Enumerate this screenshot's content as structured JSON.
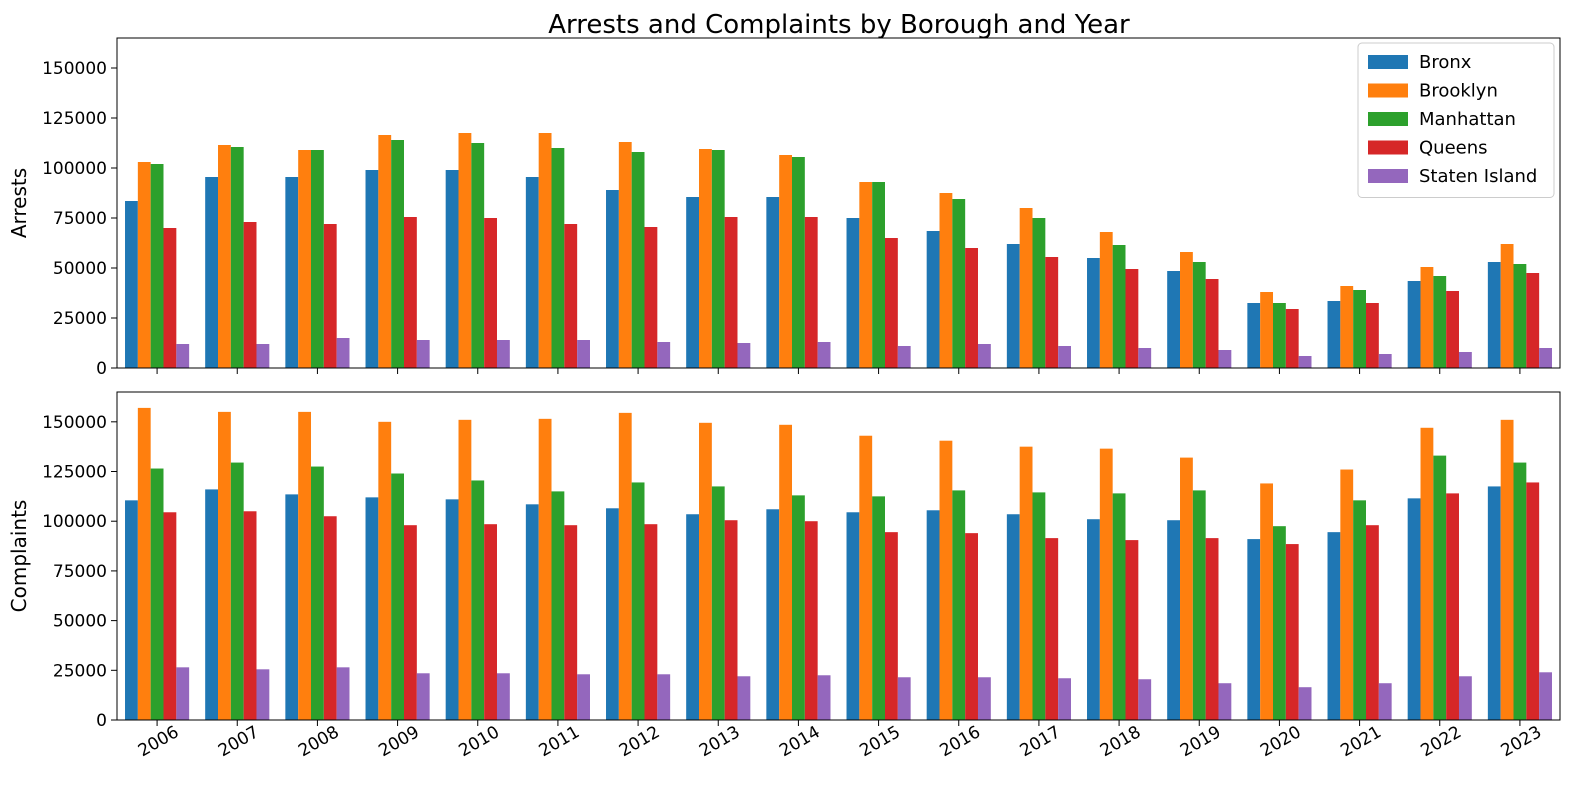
{
  "chart_data": {
    "type": "bar",
    "title": "Arrests and Complaints by Borough and Year",
    "categories": [
      "2006",
      "2007",
      "2008",
      "2009",
      "2010",
      "2011",
      "2012",
      "2013",
      "2014",
      "2015",
      "2016",
      "2017",
      "2018",
      "2019",
      "2020",
      "2021",
      "2022",
      "2023"
    ],
    "legend": {
      "placement": "top-right"
    },
    "colors": {
      "Bronx": "#1f77b4",
      "Brooklyn": "#ff7f0e",
      "Manhattan": "#2ca02c",
      "Queens": "#d62728",
      "Staten Island": "#9467bd"
    },
    "panels": [
      {
        "id": "arrests",
        "ylabel": "Arrests",
        "ylim": [
          0,
          165000
        ],
        "yticks": [
          0,
          25000,
          50000,
          75000,
          100000,
          125000,
          150000
        ],
        "grid": false,
        "show_x_tick_labels": false,
        "show_legend": true,
        "series": [
          {
            "name": "Bronx",
            "values": [
              83500,
              95500,
              95500,
              99000,
              99000,
              95500,
              89000,
              85500,
              85500,
              75000,
              68500,
              62000,
              55000,
              48500,
              32500,
              33500,
              43500,
              53000
            ]
          },
          {
            "name": "Brooklyn",
            "values": [
              103000,
              111500,
              109000,
              116500,
              117500,
              117500,
              113000,
              109500,
              106500,
              93000,
              87500,
              80000,
              68000,
              58000,
              38000,
              41000,
              50500,
              62000
            ]
          },
          {
            "name": "Manhattan",
            "values": [
              102000,
              110500,
              109000,
              114000,
              112500,
              110000,
              108000,
              109000,
              105500,
              93000,
              84500,
              75000,
              61500,
              53000,
              32500,
              39000,
              46000,
              52000
            ]
          },
          {
            "name": "Queens",
            "values": [
              70000,
              73000,
              72000,
              75500,
              75000,
              72000,
              70500,
              75500,
              75500,
              65000,
              60000,
              55500,
              49500,
              44500,
              29500,
              32500,
              38500,
              47500
            ]
          },
          {
            "name": "Staten Island",
            "values": [
              12000,
              12000,
              15000,
              14000,
              14000,
              14000,
              13000,
              12500,
              13000,
              11000,
              12000,
              11000,
              10000,
              9000,
              6000,
              7000,
              8000,
              10000
            ]
          }
        ]
      },
      {
        "id": "complaints",
        "ylabel": "Complaints",
        "ylim": [
          0,
          165000
        ],
        "yticks": [
          0,
          25000,
          50000,
          75000,
          100000,
          125000,
          150000
        ],
        "grid": false,
        "show_x_tick_labels": true,
        "show_legend": false,
        "series": [
          {
            "name": "Bronx",
            "values": [
              110500,
              116000,
              113500,
              112000,
              111000,
              108500,
              106500,
              103500,
              106000,
              104500,
              105500,
              103500,
              101000,
              100500,
              91000,
              94500,
              111500,
              117500
            ]
          },
          {
            "name": "Brooklyn",
            "values": [
              157000,
              155000,
              155000,
              150000,
              151000,
              151500,
              154500,
              149500,
              148500,
              143000,
              140500,
              137500,
              136500,
              132000,
              119000,
              126000,
              147000,
              151000
            ]
          },
          {
            "name": "Manhattan",
            "values": [
              126500,
              129500,
              127500,
              124000,
              120500,
              115000,
              119500,
              117500,
              113000,
              112500,
              115500,
              114500,
              114000,
              115500,
              97500,
              110500,
              133000,
              129500
            ]
          },
          {
            "name": "Queens",
            "values": [
              104500,
              105000,
              102500,
              98000,
              98500,
              98000,
              98500,
              100500,
              100000,
              94500,
              94000,
              91500,
              90500,
              91500,
              88500,
              98000,
              114000,
              119500
            ]
          },
          {
            "name": "Staten Island",
            "values": [
              26500,
              25500,
              26500,
              23500,
              23500,
              23000,
              23000,
              22000,
              22500,
              21500,
              21500,
              21000,
              20500,
              18500,
              16500,
              18500,
              22000,
              24000
            ]
          }
        ]
      }
    ]
  }
}
